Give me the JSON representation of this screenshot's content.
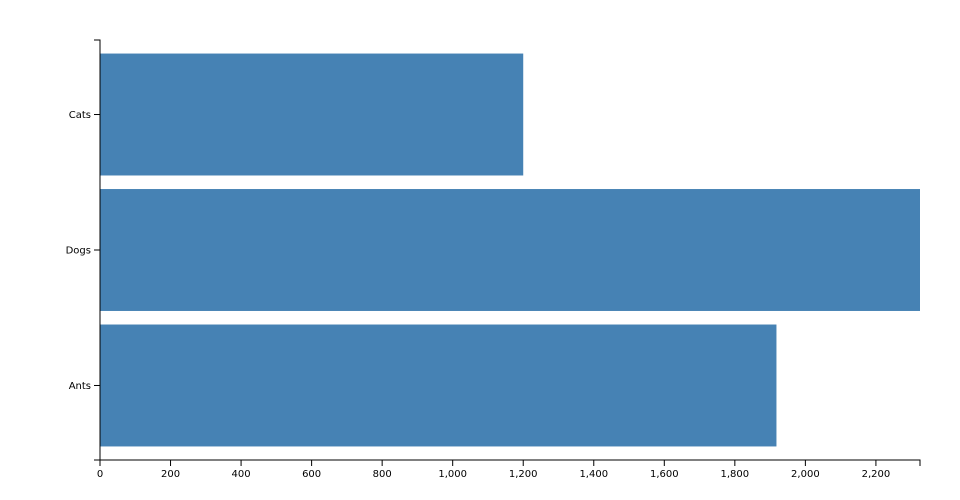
{
  "chart_data": {
    "type": "bar",
    "orientation": "horizontal",
    "categories": [
      "Cats",
      "Dogs",
      "Ants"
    ],
    "values": [
      1200,
      2325,
      1918
    ],
    "color": "#4682b4",
    "xlim": [
      0,
      2325
    ],
    "xticks": [
      0,
      200,
      400,
      600,
      800,
      {
        "value": 1000,
        "label": "1,000"
      },
      {
        "value": 1200,
        "label": "1,200"
      },
      {
        "value": 1400,
        "label": "1,400"
      },
      {
        "value": 1600,
        "label": "1,600"
      },
      {
        "value": 1800,
        "label": "1,800"
      },
      {
        "value": 2000,
        "label": "2,000"
      },
      {
        "value": 2200,
        "label": "2,200"
      }
    ],
    "grid": false
  }
}
